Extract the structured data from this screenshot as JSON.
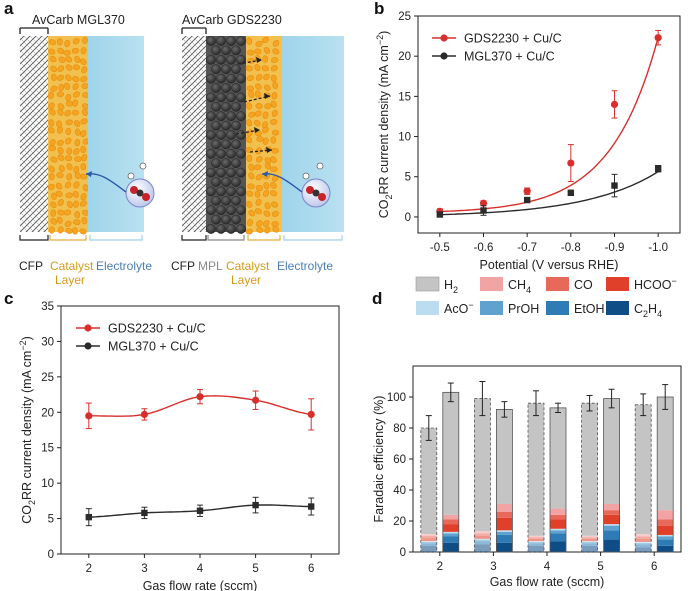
{
  "panels": {
    "a": "a",
    "b": "b",
    "c": "c",
    "d": "d"
  },
  "schematic": {
    "left_title": "AvCarb MGL370",
    "right_title": "AvCarb GDS2230",
    "labels_left": {
      "cfp": "CFP",
      "catalyst1": "Catalyst",
      "catalyst2": "Layer",
      "electrolyte": "Electrolyte"
    },
    "labels_right": {
      "cfp": "CFP",
      "mpl": "MPL",
      "catalyst1": "Catalyst",
      "catalyst2": "Layer",
      "electrolyte": "Electrolyte"
    }
  },
  "colors": {
    "red": "#d7302c",
    "black": "#2b2b2b",
    "gray": "#c4c4c4",
    "ch4": "#f2a3a3",
    "co": "#e8685a",
    "hcoo": "#e0402a",
    "aco": "#bcdcf0",
    "proh": "#5fa2d0",
    "etoh": "#2f7bb6",
    "c2h4": "#0f4d86"
  },
  "chart_data": [
    {
      "id": "b",
      "type": "scatter",
      "xlabel": "Potential (V versus RHE)",
      "ylabel_pre": "CO",
      "ylabel_sub": "2",
      "ylabel_mid": "RR current density (mA cm",
      "ylabel_sup": "−2",
      "ylabel_post": ")",
      "xticks": [
        "-0.5",
        "-0.6",
        "-0.7",
        "-0.8",
        "-0.9",
        "-1.0"
      ],
      "xvals": [
        -0.5,
        -0.6,
        -0.7,
        -0.8,
        -0.9,
        -1.0
      ],
      "xlim": [
        -0.45,
        -1.05
      ],
      "ylim": [
        -2,
        25
      ],
      "yticks": [
        "0",
        "5",
        "10",
        "15",
        "20",
        "25"
      ],
      "series": [
        {
          "name": "GDS2230 + Cu/C",
          "values": [
            0.7,
            1.7,
            3.2,
            6.7,
            14.0,
            22.3
          ],
          "errors": [
            0.3,
            0.3,
            0.4,
            2.3,
            1.7,
            0.9
          ]
        },
        {
          "name": "MGL370 + Cu/C",
          "values": [
            0.3,
            0.8,
            2.1,
            3.0,
            3.9,
            6.0
          ],
          "errors": [
            0.2,
            0.6,
            0.3,
            0.3,
            1.4,
            0.4
          ]
        }
      ]
    },
    {
      "id": "c",
      "type": "scatter",
      "xlabel": "Gas flow rate (sccm)",
      "ylabel_pre": "CO",
      "ylabel_sub": "2",
      "ylabel_mid": "RR current density (mA cm",
      "ylabel_sup": "−2",
      "ylabel_post": ")",
      "xticks": [
        "2",
        "3",
        "4",
        "5",
        "6"
      ],
      "xvals": [
        2,
        3,
        4,
        5,
        6
      ],
      "xlim": [
        1.5,
        6.5
      ],
      "ylim": [
        0,
        35
      ],
      "yticks": [
        "0",
        "5",
        "10",
        "15",
        "20",
        "25",
        "30",
        "35"
      ],
      "series": [
        {
          "name": "GDS2230 + Cu/C",
          "values": [
            19.5,
            19.7,
            22.2,
            21.7,
            19.7
          ],
          "errors": [
            1.8,
            0.8,
            1.0,
            1.3,
            2.2
          ]
        },
        {
          "name": "MGL370 + Cu/C",
          "values": [
            5.2,
            5.8,
            6.1,
            6.9,
            6.7
          ],
          "errors": [
            1.2,
            0.8,
            0.8,
            1.1,
            1.2
          ]
        }
      ]
    },
    {
      "id": "d",
      "type": "bar",
      "xlabel": "Gas flow rate (sccm)",
      "ylabel": "Faradaic efficiency (%)",
      "categories": [
        "2",
        "3",
        "4",
        "5",
        "6"
      ],
      "ylim": [
        0,
        120
      ],
      "yticks": [
        "0",
        "20",
        "40",
        "60",
        "80",
        "100"
      ],
      "legend": [
        {
          "key": "h2",
          "pre": "H",
          "sub": "2",
          "sup": "",
          "color": "gray"
        },
        {
          "key": "ch4",
          "pre": "CH",
          "sub": "4",
          "sup": "",
          "color": "ch4"
        },
        {
          "key": "co",
          "pre": "CO",
          "sub": "",
          "sup": "",
          "color": "co"
        },
        {
          "key": "hcoo",
          "pre": "HCOO",
          "sub": "",
          "sup": "−",
          "color": "hcoo"
        },
        {
          "key": "aco",
          "pre": "AcO",
          "sub": "",
          "sup": "−",
          "color": "aco"
        },
        {
          "key": "proh",
          "pre": "PrOH",
          "sub": "",
          "sup": "",
          "color": "proh"
        },
        {
          "key": "etoh",
          "pre": "EtOH",
          "sub": "",
          "sup": "",
          "color": "etoh"
        },
        {
          "key": "c2h4",
          "pre": "C",
          "sub": "2",
          "sup": "",
          "post": "H",
          "sub2": "4",
          "color": "c2h4"
        }
      ],
      "groups": [
        {
          "MGL370": {
            "c2h4": 4,
            "etoh": 1.5,
            "proh": 1,
            "aco": 0.5,
            "hcoo": 2,
            "co": 1.5,
            "ch4": 1,
            "h2": 68.5,
            "total": 80,
            "err": 8
          },
          "GDS2230": {
            "c2h4": 6,
            "etoh": 4,
            "proh": 2,
            "aco": 1,
            "hcoo": 5,
            "co": 3,
            "ch4": 3,
            "h2": 79,
            "total": 103,
            "err": 6
          }
        },
        {
          "MGL370": {
            "c2h4": 5,
            "etoh": 2,
            "proh": 1,
            "aco": 0.5,
            "hcoo": 2,
            "co": 1.5,
            "ch4": 1.5,
            "h2": 85.5,
            "total": 99,
            "err": 11
          },
          "GDS2230": {
            "c2h4": 6,
            "etoh": 5,
            "proh": 2,
            "aco": 1,
            "hcoo": 8,
            "co": 4,
            "ch4": 5,
            "h2": 61,
            "total": 92,
            "err": 5
          }
        },
        {
          "MGL370": {
            "c2h4": 4,
            "etoh": 1.5,
            "proh": 1,
            "aco": 0.5,
            "hcoo": 1.5,
            "co": 1,
            "ch4": 1,
            "h2": 85.5,
            "total": 96,
            "err": 8
          },
          "GDS2230": {
            "c2h4": 7,
            "etoh": 5,
            "proh": 2,
            "aco": 1,
            "hcoo": 6,
            "co": 3,
            "ch4": 4,
            "h2": 65,
            "total": 93,
            "err": 3
          }
        },
        {
          "MGL370": {
            "c2h4": 4,
            "etoh": 1.5,
            "proh": 1,
            "aco": 0.5,
            "hcoo": 1.5,
            "co": 1,
            "ch4": 1,
            "h2": 85.5,
            "total": 96,
            "err": 5
          },
          "GDS2230": {
            "c2h4": 8,
            "etoh": 6,
            "proh": 3,
            "aco": 1,
            "hcoo": 6,
            "co": 3,
            "ch4": 4,
            "h2": 68,
            "total": 99,
            "err": 6
          }
        },
        {
          "MGL370": {
            "c2h4": 3,
            "etoh": 2,
            "proh": 1,
            "aco": 0.5,
            "hcoo": 2,
            "co": 1.5,
            "ch4": 1.5,
            "h2": 83.5,
            "total": 95,
            "err": 7
          },
          "GDS2230": {
            "c2h4": 4,
            "etoh": 4,
            "proh": 2,
            "aco": 1,
            "hcoo": 6,
            "co": 4,
            "ch4": 6,
            "h2": 73,
            "total": 100,
            "err": 8
          }
        }
      ]
    }
  ]
}
